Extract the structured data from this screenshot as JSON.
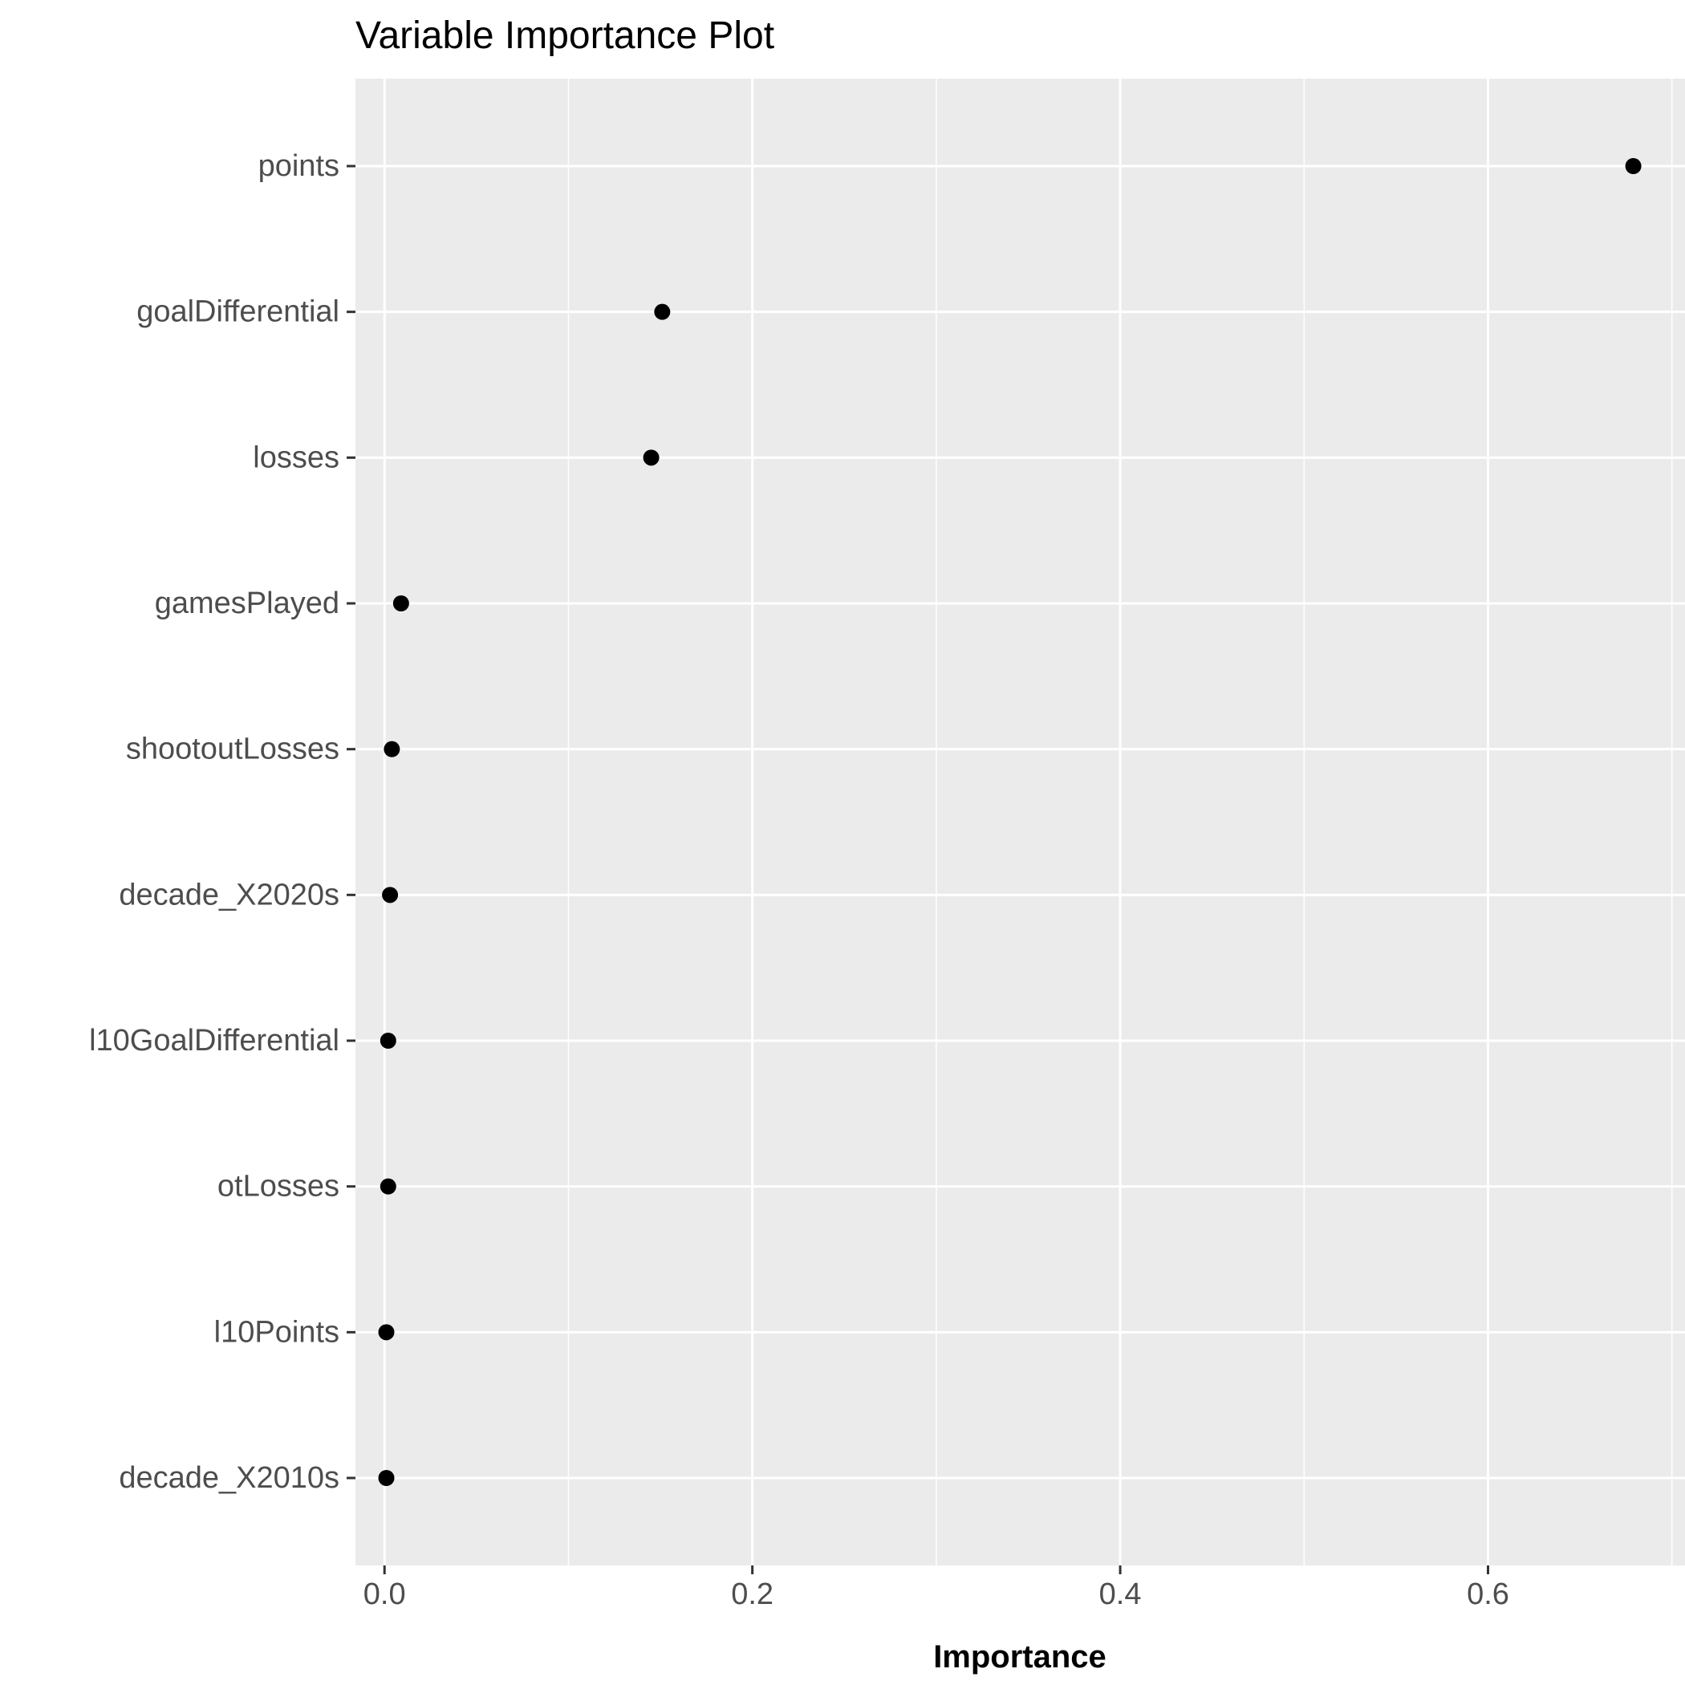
{
  "chart_data": {
    "type": "scatter",
    "title": "Variable Importance Plot",
    "xlabel": "Importance",
    "ylabel": "",
    "xlim": [
      -0.0158,
      0.7071
    ],
    "xticks": [
      0.0,
      0.2,
      0.4,
      0.6
    ],
    "xtick_labels": [
      "0.0",
      "0.2",
      "0.4",
      "0.6"
    ],
    "x_minor_gridlines": [
      0.1,
      0.3,
      0.5,
      0.7
    ],
    "grid": true,
    "legend": "none",
    "categories": [
      "points",
      "goalDifferential",
      "losses",
      "gamesPlayed",
      "shootoutLosses",
      "decade_X2020s",
      "l10GoalDifferential",
      "otLosses",
      "l10Points",
      "decade_X2010s"
    ],
    "values": [
      0.679,
      0.151,
      0.145,
      0.009,
      0.004,
      0.003,
      0.002,
      0.002,
      0.001,
      0.001
    ],
    "colors": {
      "panel_background": "#ebebeb",
      "gridline": "#ffffff",
      "point": "#000000",
      "tick_text": "#4d4d4d",
      "tick_mark": "#333333"
    }
  }
}
